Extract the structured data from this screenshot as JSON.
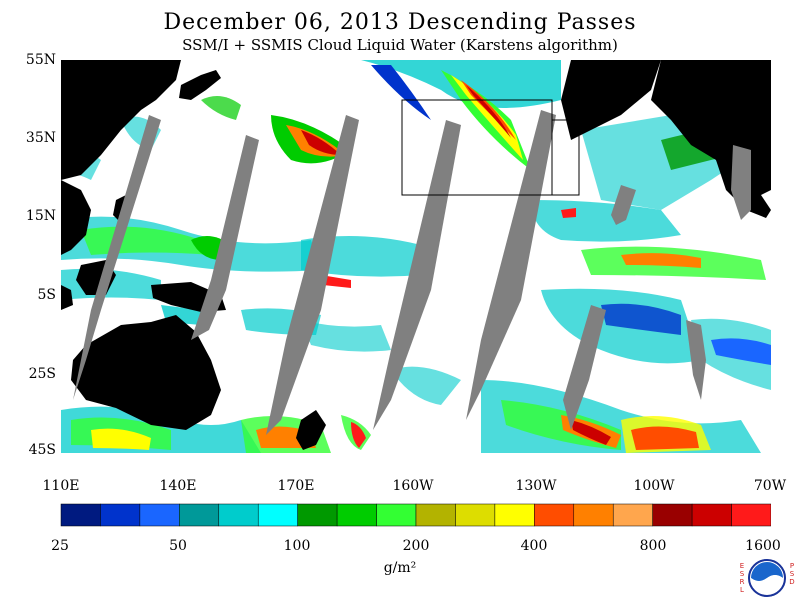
{
  "title": "December 06, 2013  Descending Passes",
  "subtitle": "SSM/I + SSMIS Cloud Liquid Water (Karstens algorithm)",
  "y_axis": [
    "55N",
    "35N",
    "15N",
    "5S",
    "25S",
    "45S"
  ],
  "x_axis": [
    "110E",
    "140E",
    "170E",
    "160W",
    "130W",
    "100W",
    "70W"
  ],
  "colorbar": {
    "unit": "g/m²",
    "tick_labels": [
      "25",
      "50",
      "100",
      "200",
      "400",
      "800",
      "1600"
    ],
    "colors": [
      "#001a80",
      "#0033cc",
      "#1a66ff",
      "#009999",
      "#00cccc",
      "#00ffff",
      "#009900",
      "#00cc00",
      "#33ff33",
      "#b3b300",
      "#dddd00",
      "#ffff00",
      "#ff4d00",
      "#ff8000",
      "#ffa64d",
      "#990000",
      "#cc0000",
      "#ff1a1a"
    ]
  },
  "logo": {
    "left_text": "ESRL",
    "right_text": "PSD",
    "emblem": "noaa-emblem"
  },
  "colors": {
    "land": "#000000",
    "no_data": "#808080",
    "clear": "#ffffff",
    "box": "#000000"
  }
}
